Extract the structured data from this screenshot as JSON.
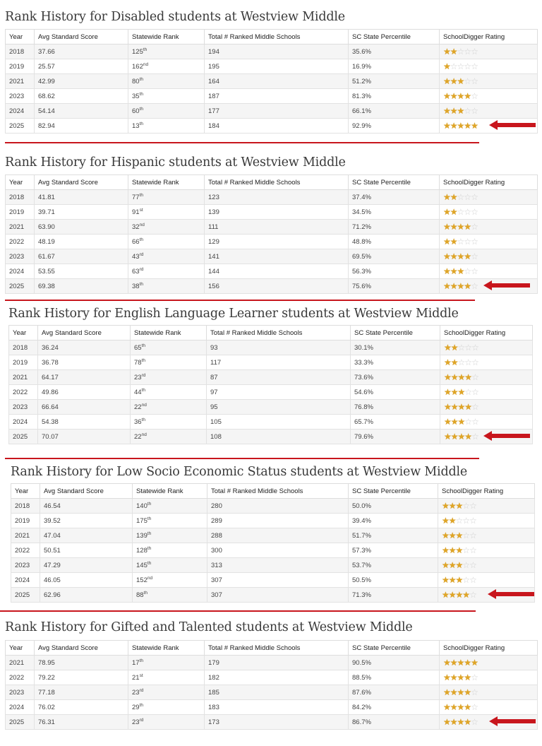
{
  "headers": [
    "Year",
    "Avg Standard Score",
    "Statewide Rank",
    "Total # Ranked Middle Schools",
    "SC State Percentile",
    "SchoolDigger Rating"
  ],
  "sections": [
    {
      "title": "Rank History for Disabled students at Westview Middle",
      "rows": [
        {
          "year": "2018",
          "score": "37.66",
          "rank": "125",
          "suffix": "th",
          "total": "194",
          "pct": "35.6%",
          "stars": 2
        },
        {
          "year": "2019",
          "score": "25.57",
          "rank": "162",
          "suffix": "nd",
          "total": "195",
          "pct": "16.9%",
          "stars": 1
        },
        {
          "year": "2021",
          "score": "42.99",
          "rank": "80",
          "suffix": "th",
          "total": "164",
          "pct": "51.2%",
          "stars": 3
        },
        {
          "year": "2023",
          "score": "68.62",
          "rank": "35",
          "suffix": "th",
          "total": "187",
          "pct": "81.3%",
          "stars": 4
        },
        {
          "year": "2024",
          "score": "54.14",
          "rank": "60",
          "suffix": "th",
          "total": "177",
          "pct": "66.1%",
          "stars": 3
        },
        {
          "year": "2025",
          "score": "82.94",
          "rank": "13",
          "suffix": "th",
          "total": "184",
          "pct": "92.9%",
          "stars": 5
        }
      ]
    },
    {
      "title": "Rank History for Hispanic students at Westview Middle",
      "rows": [
        {
          "year": "2018",
          "score": "41.81",
          "rank": "77",
          "suffix": "th",
          "total": "123",
          "pct": "37.4%",
          "stars": 2
        },
        {
          "year": "2019",
          "score": "39.71",
          "rank": "91",
          "suffix": "st",
          "total": "139",
          "pct": "34.5%",
          "stars": 2
        },
        {
          "year": "2021",
          "score": "63.90",
          "rank": "32",
          "suffix": "nd",
          "total": "111",
          "pct": "71.2%",
          "stars": 4
        },
        {
          "year": "2022",
          "score": "48.19",
          "rank": "66",
          "suffix": "th",
          "total": "129",
          "pct": "48.8%",
          "stars": 2
        },
        {
          "year": "2023",
          "score": "61.67",
          "rank": "43",
          "suffix": "rd",
          "total": "141",
          "pct": "69.5%",
          "stars": 4
        },
        {
          "year": "2024",
          "score": "53.55",
          "rank": "63",
          "suffix": "rd",
          "total": "144",
          "pct": "56.3%",
          "stars": 3
        },
        {
          "year": "2025",
          "score": "69.38",
          "rank": "38",
          "suffix": "th",
          "total": "156",
          "pct": "75.6%",
          "stars": 4
        }
      ]
    },
    {
      "title": "Rank History for English Language Learner students at Westview Middle",
      "rows": [
        {
          "year": "2018",
          "score": "36.24",
          "rank": "65",
          "suffix": "th",
          "total": "93",
          "pct": "30.1%",
          "stars": 2
        },
        {
          "year": "2019",
          "score": "36.78",
          "rank": "78",
          "suffix": "th",
          "total": "117",
          "pct": "33.3%",
          "stars": 2
        },
        {
          "year": "2021",
          "score": "64.17",
          "rank": "23",
          "suffix": "rd",
          "total": "87",
          "pct": "73.6%",
          "stars": 4
        },
        {
          "year": "2022",
          "score": "49.86",
          "rank": "44",
          "suffix": "th",
          "total": "97",
          "pct": "54.6%",
          "stars": 3
        },
        {
          "year": "2023",
          "score": "66.64",
          "rank": "22",
          "suffix": "nd",
          "total": "95",
          "pct": "76.8%",
          "stars": 4
        },
        {
          "year": "2024",
          "score": "54.38",
          "rank": "36",
          "suffix": "th",
          "total": "105",
          "pct": "65.7%",
          "stars": 3
        },
        {
          "year": "2025",
          "score": "70.07",
          "rank": "22",
          "suffix": "nd",
          "total": "108",
          "pct": "79.6%",
          "stars": 4
        }
      ]
    },
    {
      "title": "Rank History for Low Socio Economic Status students at Westview Middle",
      "rows": [
        {
          "year": "2018",
          "score": "46.54",
          "rank": "140",
          "suffix": "th",
          "total": "280",
          "pct": "50.0%",
          "stars": 3
        },
        {
          "year": "2019",
          "score": "39.52",
          "rank": "175",
          "suffix": "th",
          "total": "289",
          "pct": "39.4%",
          "stars": 2
        },
        {
          "year": "2021",
          "score": "47.04",
          "rank": "139",
          "suffix": "th",
          "total": "288",
          "pct": "51.7%",
          "stars": 3
        },
        {
          "year": "2022",
          "score": "50.51",
          "rank": "128",
          "suffix": "th",
          "total": "300",
          "pct": "57.3%",
          "stars": 3
        },
        {
          "year": "2023",
          "score": "47.29",
          "rank": "145",
          "suffix": "th",
          "total": "313",
          "pct": "53.7%",
          "stars": 3
        },
        {
          "year": "2024",
          "score": "46.05",
          "rank": "152",
          "suffix": "nd",
          "total": "307",
          "pct": "50.5%",
          "stars": 3
        },
        {
          "year": "2025",
          "score": "62.96",
          "rank": "88",
          "suffix": "th",
          "total": "307",
          "pct": "71.3%",
          "stars": 4
        }
      ]
    },
    {
      "title": "Rank History for Gifted and Talented students at Westview Middle",
      "rows": [
        {
          "year": "2021",
          "score": "78.95",
          "rank": "17",
          "suffix": "th",
          "total": "179",
          "pct": "90.5%",
          "stars": 5
        },
        {
          "year": "2022",
          "score": "79.22",
          "rank": "21",
          "suffix": "st",
          "total": "182",
          "pct": "88.5%",
          "stars": 4
        },
        {
          "year": "2023",
          "score": "77.18",
          "rank": "23",
          "suffix": "rd",
          "total": "185",
          "pct": "87.6%",
          "stars": 4
        },
        {
          "year": "2024",
          "score": "76.02",
          "rank": "29",
          "suffix": "th",
          "total": "183",
          "pct": "84.2%",
          "stars": 4
        },
        {
          "year": "2025",
          "score": "76.31",
          "rank": "23",
          "suffix": "rd",
          "total": "173",
          "pct": "86.7%",
          "stars": 4
        }
      ]
    }
  ],
  "colors": {
    "accent_red": "#c8161d",
    "star_on": "#e0a526",
    "star_off": "#cfcfcf"
  },
  "icons": {
    "rating": "star-icon",
    "marker": "red-arrow-icon"
  }
}
